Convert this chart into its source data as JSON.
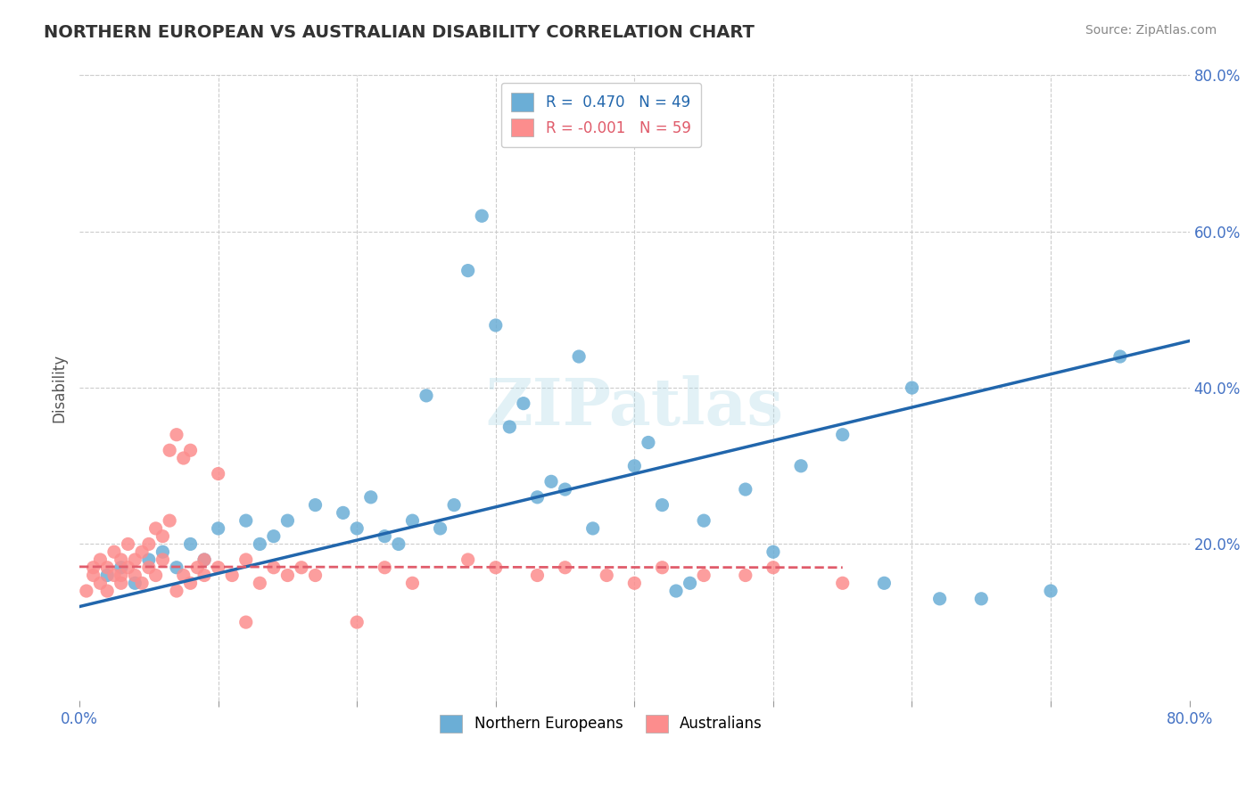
{
  "title": "NORTHERN EUROPEAN VS AUSTRALIAN DISABILITY CORRELATION CHART",
  "source_text": "Source: ZipAtlas.com",
  "xlabel": "",
  "ylabel": "Disability",
  "watermark": "ZIPatlas",
  "x_min": 0.0,
  "x_max": 0.8,
  "y_min": 0.0,
  "y_max": 0.8,
  "x_ticks": [
    0.0,
    0.1,
    0.2,
    0.3,
    0.4,
    0.5,
    0.6,
    0.7,
    0.8
  ],
  "x_tick_labels": [
    "0.0%",
    "",
    "",
    "",
    "",
    "",
    "",
    "",
    "80.0%"
  ],
  "y_ticks_right": [
    0.2,
    0.4,
    0.6,
    0.8
  ],
  "y_tick_labels_right": [
    "20.0%",
    "40.0%",
    "60.0%",
    "80.0%"
  ],
  "blue_R": 0.47,
  "blue_N": 49,
  "pink_R": -0.001,
  "pink_N": 59,
  "blue_color": "#6baed6",
  "pink_color": "#fc8d8d",
  "blue_line_color": "#2166ac",
  "pink_line_color": "#e05c6b",
  "grid_color": "#cccccc",
  "background_color": "#ffffff",
  "legend_blue_label": "Northern Europeans",
  "legend_pink_label": "Australians",
  "blue_scatter_x": [
    0.02,
    0.03,
    0.04,
    0.05,
    0.06,
    0.07,
    0.08,
    0.09,
    0.1,
    0.12,
    0.13,
    0.14,
    0.15,
    0.17,
    0.19,
    0.2,
    0.21,
    0.22,
    0.23,
    0.24,
    0.25,
    0.26,
    0.27,
    0.28,
    0.29,
    0.3,
    0.31,
    0.32,
    0.33,
    0.34,
    0.35,
    0.36,
    0.37,
    0.4,
    0.41,
    0.42,
    0.43,
    0.44,
    0.45,
    0.48,
    0.5,
    0.52,
    0.55,
    0.58,
    0.6,
    0.62,
    0.65,
    0.7,
    0.75
  ],
  "blue_scatter_y": [
    0.16,
    0.17,
    0.15,
    0.18,
    0.19,
    0.17,
    0.2,
    0.18,
    0.22,
    0.23,
    0.2,
    0.21,
    0.23,
    0.25,
    0.24,
    0.22,
    0.26,
    0.21,
    0.2,
    0.23,
    0.39,
    0.22,
    0.25,
    0.55,
    0.62,
    0.48,
    0.35,
    0.38,
    0.26,
    0.28,
    0.27,
    0.44,
    0.22,
    0.3,
    0.33,
    0.25,
    0.14,
    0.15,
    0.23,
    0.27,
    0.19,
    0.3,
    0.34,
    0.15,
    0.4,
    0.13,
    0.13,
    0.14,
    0.44
  ],
  "pink_scatter_x": [
    0.005,
    0.01,
    0.01,
    0.015,
    0.015,
    0.02,
    0.02,
    0.025,
    0.025,
    0.03,
    0.03,
    0.03,
    0.035,
    0.035,
    0.04,
    0.04,
    0.045,
    0.045,
    0.05,
    0.05,
    0.055,
    0.055,
    0.06,
    0.06,
    0.065,
    0.065,
    0.07,
    0.07,
    0.075,
    0.075,
    0.08,
    0.08,
    0.085,
    0.09,
    0.09,
    0.1,
    0.1,
    0.11,
    0.12,
    0.12,
    0.13,
    0.14,
    0.15,
    0.16,
    0.17,
    0.2,
    0.22,
    0.24,
    0.28,
    0.3,
    0.33,
    0.35,
    0.38,
    0.4,
    0.42,
    0.45,
    0.48,
    0.5,
    0.55
  ],
  "pink_scatter_y": [
    0.14,
    0.16,
    0.17,
    0.15,
    0.18,
    0.14,
    0.17,
    0.16,
    0.19,
    0.15,
    0.16,
    0.18,
    0.17,
    0.2,
    0.16,
    0.18,
    0.15,
    0.19,
    0.17,
    0.2,
    0.16,
    0.22,
    0.18,
    0.21,
    0.23,
    0.32,
    0.34,
    0.14,
    0.16,
    0.31,
    0.32,
    0.15,
    0.17,
    0.16,
    0.18,
    0.17,
    0.29,
    0.16,
    0.18,
    0.1,
    0.15,
    0.17,
    0.16,
    0.17,
    0.16,
    0.1,
    0.17,
    0.15,
    0.18,
    0.17,
    0.16,
    0.17,
    0.16,
    0.15,
    0.17,
    0.16,
    0.16,
    0.17,
    0.15
  ]
}
